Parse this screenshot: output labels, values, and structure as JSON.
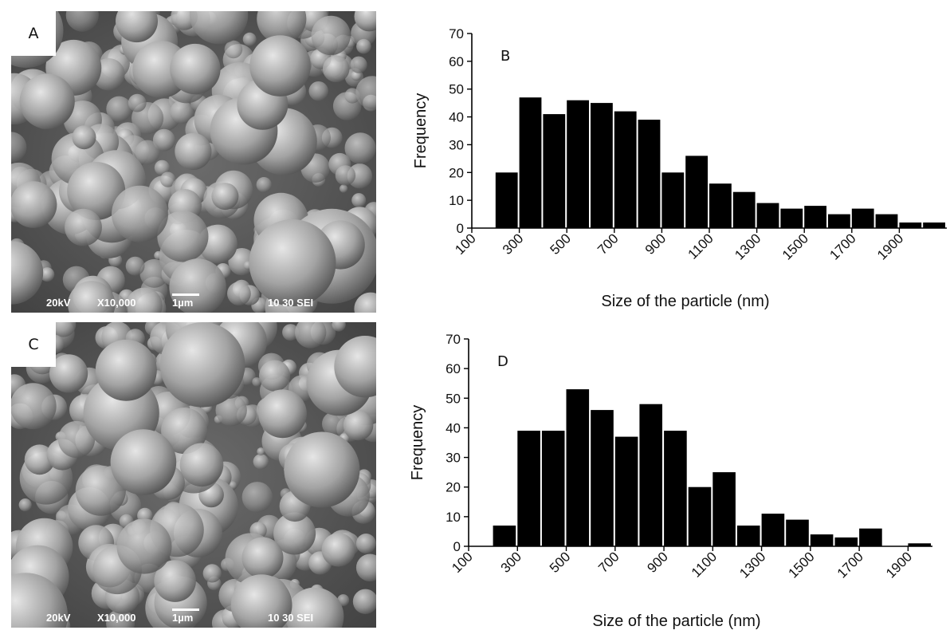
{
  "panels": {
    "A": {
      "letter": "A",
      "scale": {
        "kv": "20kV",
        "mag": "X10,000",
        "bar": "1µm",
        "code": "10 30 SEI"
      }
    },
    "C": {
      "letter": "C",
      "scale": {
        "kv": "20kV",
        "mag": "X10,000",
        "bar": "1µm",
        "code": "10 30 SEI"
      }
    }
  },
  "chart_data": [
    {
      "type": "bar",
      "panel_label": "B",
      "title": "",
      "xlabel": "Size of the particle (nm)",
      "ylabel": "Frequency",
      "ylim": [
        0,
        70
      ],
      "yticks": [
        0,
        10,
        20,
        30,
        40,
        50,
        60,
        70
      ],
      "xtick_labels": [
        "100",
        "300",
        "500",
        "700",
        "900",
        "1100",
        "1300",
        "1500",
        "1700",
        "1900"
      ],
      "bar_width_nm": 100,
      "x_start_nm": 100,
      "bins_start_nm": [
        200,
        300,
        400,
        500,
        600,
        700,
        800,
        900,
        1000,
        1100,
        1200,
        1300,
        1400,
        1500,
        1600,
        1700,
        1800,
        1900,
        2000
      ],
      "values": [
        20,
        47,
        41,
        46,
        45,
        42,
        39,
        20,
        26,
        16,
        13,
        9,
        7,
        8,
        5,
        7,
        5,
        2,
        2
      ],
      "grid": false,
      "legend": "none",
      "bar_color": "#000000"
    },
    {
      "type": "bar",
      "panel_label": "D",
      "title": "",
      "xlabel": "Size of the particle (nm)",
      "ylabel": "Frequency",
      "ylim": [
        0,
        70
      ],
      "yticks": [
        0,
        10,
        20,
        30,
        40,
        50,
        60,
        70
      ],
      "xtick_labels": [
        "100",
        "300",
        "500",
        "700",
        "900",
        "1100",
        "1300",
        "1500",
        "1700",
        "1900"
      ],
      "bar_width_nm": 100,
      "x_start_nm": 100,
      "bins_start_nm": [
        200,
        300,
        400,
        500,
        600,
        700,
        800,
        900,
        1000,
        1100,
        1200,
        1300,
        1400,
        1500,
        1600,
        1700,
        1800,
        1900
      ],
      "values": [
        7,
        39,
        39,
        53,
        46,
        37,
        48,
        39,
        20,
        25,
        7,
        11,
        9,
        4,
        3,
        6,
        0,
        1
      ],
      "grid": false,
      "legend": "none",
      "bar_color": "#000000"
    }
  ]
}
